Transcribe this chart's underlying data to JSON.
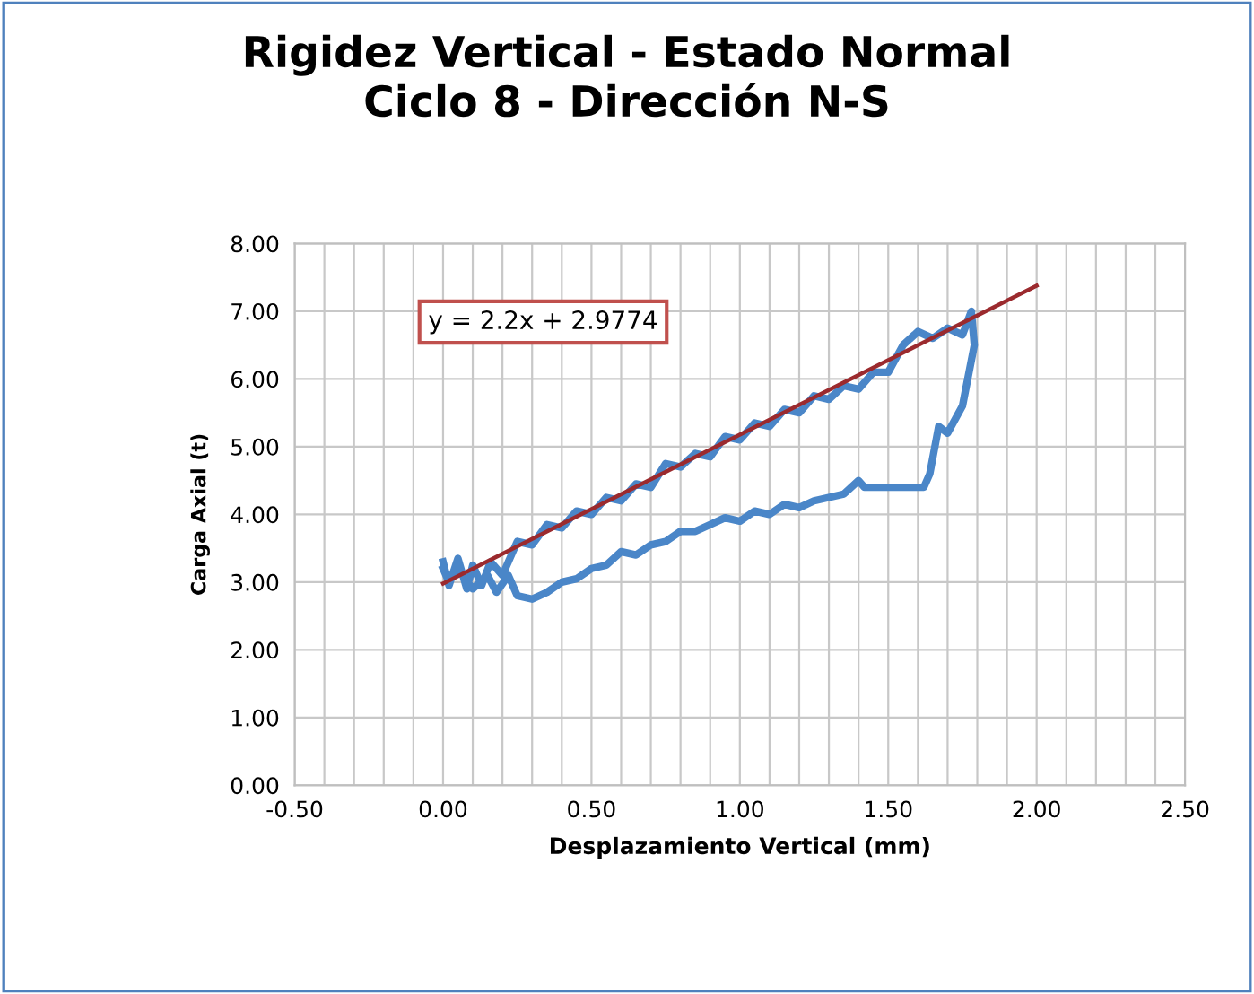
{
  "chart_data": {
    "type": "line",
    "title": "Rigidez Vertical - Estado Normal\nCiclo 8 - Dirección N-S",
    "xlabel": "Desplazamiento Vertical (mm)",
    "ylabel": "Carga Axial (t)",
    "annotations": [
      "y = 2.2x + 2.9774"
    ],
    "xlim": [
      -0.5,
      2.5
    ],
    "ylim": [
      0,
      8
    ],
    "grid": true,
    "legend": false,
    "marker": "none",
    "line_style": "solid",
    "xticks": [
      {
        "value": -0.5,
        "label": "-0.50"
      },
      {
        "value": -0.4,
        "label": null
      },
      {
        "value": -0.3,
        "label": null
      },
      {
        "value": -0.2,
        "label": null
      },
      {
        "value": -0.1,
        "label": null
      },
      {
        "value": 0,
        "label": "0.00"
      },
      {
        "value": 0.1,
        "label": null
      },
      {
        "value": 0.2,
        "label": null
      },
      {
        "value": 0.3,
        "label": null
      },
      {
        "value": 0.4,
        "label": null
      },
      {
        "value": 0.5,
        "label": "0.50"
      },
      {
        "value": 0.6,
        "label": null
      },
      {
        "value": 0.7,
        "label": null
      },
      {
        "value": 0.8,
        "label": null
      },
      {
        "value": 0.9,
        "label": null
      },
      {
        "value": 1.0,
        "label": "1.00"
      },
      {
        "value": 1.1,
        "label": null
      },
      {
        "value": 1.2,
        "label": null
      },
      {
        "value": 1.3,
        "label": null
      },
      {
        "value": 1.4,
        "label": null
      },
      {
        "value": 1.5,
        "label": "1.50"
      },
      {
        "value": 1.6,
        "label": null
      },
      {
        "value": 1.7,
        "label": null
      },
      {
        "value": 1.8,
        "label": null
      },
      {
        "value": 1.9,
        "label": null
      },
      {
        "value": 2.0,
        "label": "2.00"
      },
      {
        "value": 2.1,
        "label": null
      },
      {
        "value": 2.2,
        "label": null
      },
      {
        "value": 2.3,
        "label": null
      },
      {
        "value": 2.4,
        "label": null
      },
      {
        "value": 2.5,
        "label": "2.50"
      }
    ],
    "yticks": [
      {
        "value": 0,
        "label": "0.00"
      },
      {
        "value": 1,
        "label": "1.00"
      },
      {
        "value": 2,
        "label": "2.00"
      },
      {
        "value": 3,
        "label": "3.00"
      },
      {
        "value": 4,
        "label": "4.00"
      },
      {
        "value": 5,
        "label": "5.00"
      },
      {
        "value": 6,
        "label": "6.00"
      },
      {
        "value": 7,
        "label": "7.00"
      },
      {
        "value": 8,
        "label": "8.00"
      }
    ],
    "series": [
      {
        "color": "#4a86c8",
        "x": [
          0.0,
          0.02,
          0.05,
          0.08,
          0.1,
          0.13,
          0.16,
          0.2,
          0.25,
          0.3,
          0.35,
          0.4,
          0.45,
          0.5,
          0.55,
          0.6,
          0.65,
          0.7,
          0.75,
          0.8,
          0.85,
          0.9,
          0.95,
          1.0,
          1.05,
          1.1,
          1.15,
          1.2,
          1.25,
          1.3,
          1.35,
          1.4,
          1.45,
          1.5,
          1.55,
          1.6,
          1.65,
          1.7,
          1.75,
          1.78,
          1.79,
          1.75,
          1.7,
          1.67,
          1.64,
          1.62,
          1.42,
          1.4,
          1.35,
          1.3,
          1.25,
          1.2,
          1.15,
          1.1,
          1.05,
          1.0,
          0.95,
          0.9,
          0.85,
          0.8,
          0.75,
          0.7,
          0.65,
          0.6,
          0.55,
          0.5,
          0.45,
          0.4,
          0.35,
          0.3,
          0.25,
          0.22,
          0.18,
          0.15,
          0.1,
          0.05,
          0.02,
          0.0
        ],
        "values": [
          3.3,
          2.95,
          3.35,
          2.9,
          3.25,
          2.95,
          3.3,
          3.1,
          3.6,
          3.55,
          3.85,
          3.8,
          4.05,
          4.0,
          4.25,
          4.2,
          4.45,
          4.4,
          4.75,
          4.7,
          4.9,
          4.85,
          5.15,
          5.1,
          5.35,
          5.3,
          5.55,
          5.5,
          5.75,
          5.7,
          5.9,
          5.85,
          6.1,
          6.1,
          6.5,
          6.7,
          6.6,
          6.75,
          6.65,
          7.0,
          6.5,
          5.6,
          5.2,
          5.3,
          4.6,
          4.4,
          4.4,
          4.5,
          4.3,
          4.25,
          4.2,
          4.1,
          4.15,
          4.0,
          4.05,
          3.9,
          3.95,
          3.85,
          3.75,
          3.75,
          3.6,
          3.55,
          3.4,
          3.45,
          3.25,
          3.2,
          3.05,
          3.0,
          2.85,
          2.75,
          2.8,
          3.1,
          2.85,
          3.1,
          2.9,
          3.2,
          3.0,
          3.2
        ]
      },
      {
        "color": "#9b2a2e",
        "x": [
          0.0,
          2.0
        ],
        "values": [
          2.9774,
          7.3774
        ]
      }
    ]
  }
}
